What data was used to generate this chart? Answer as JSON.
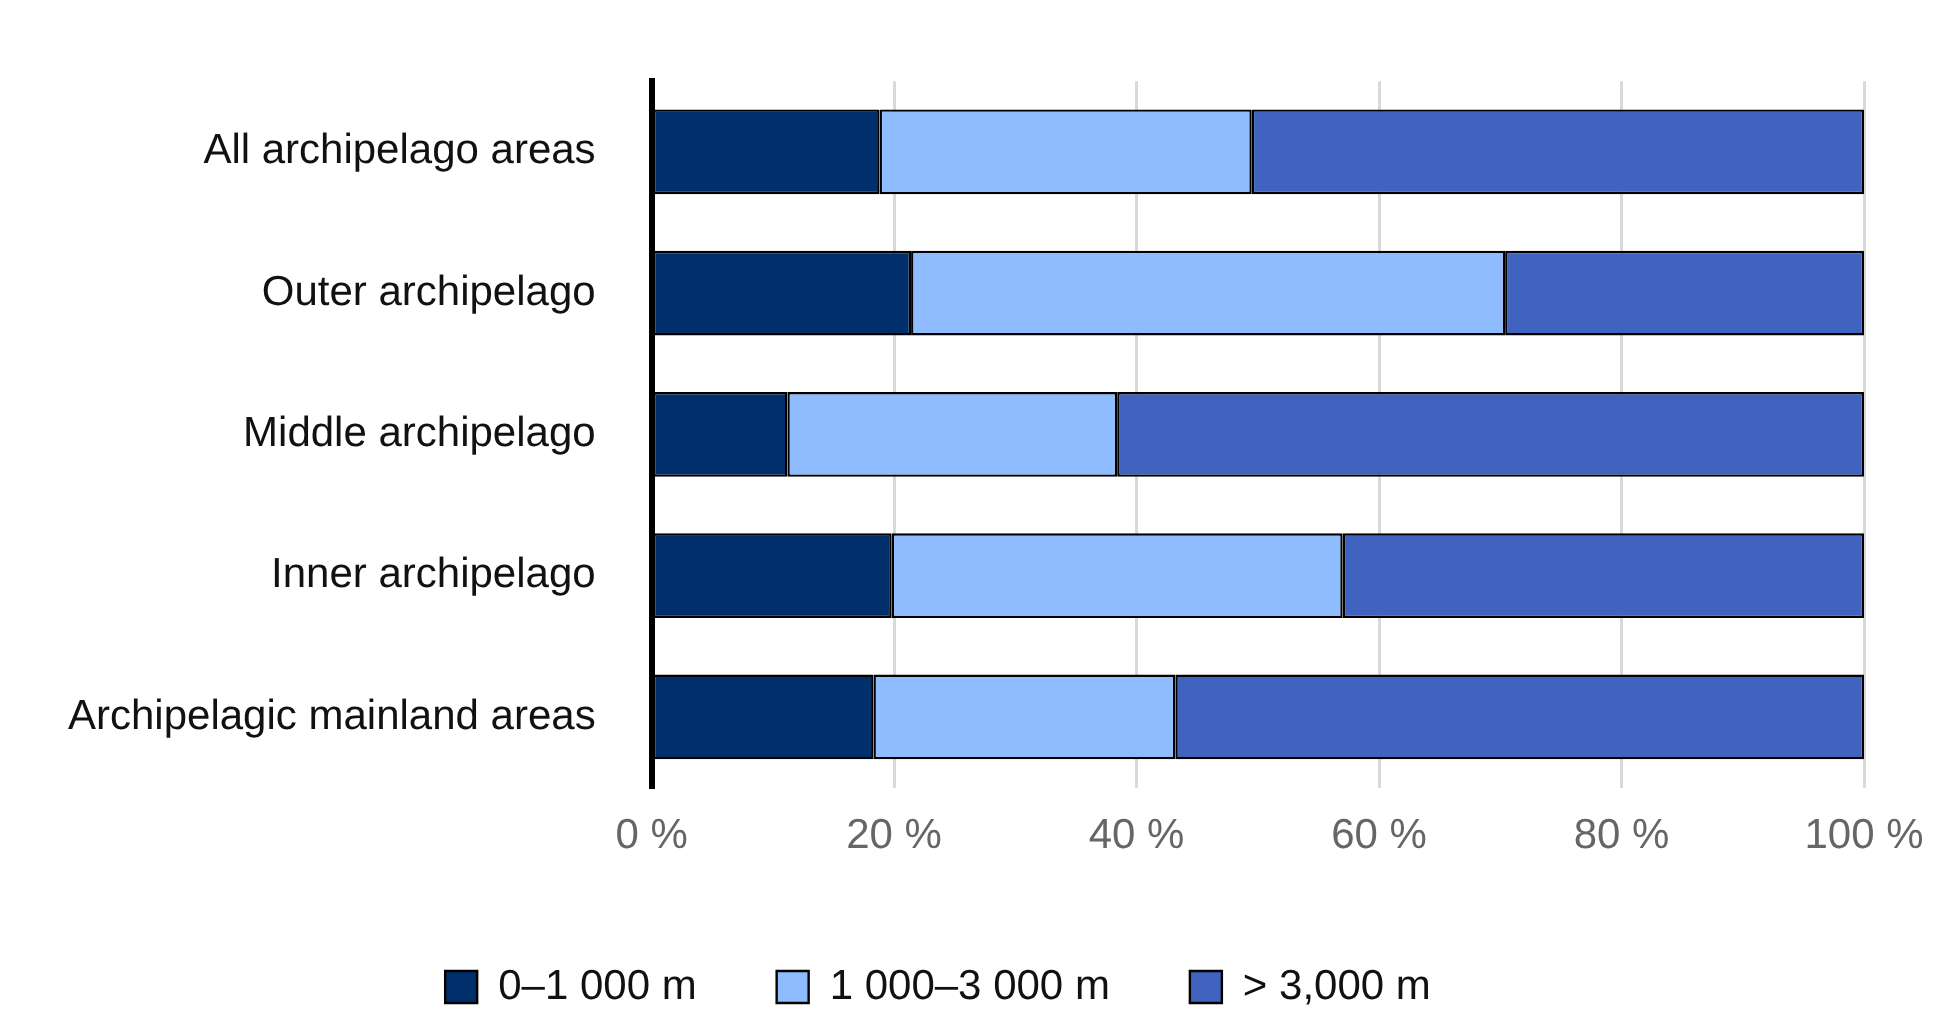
{
  "chart_data": {
    "type": "bar",
    "orientation": "horizontal",
    "stacked": true,
    "categories": [
      "All archipelago areas",
      "Outer archipelago",
      "Middle archipelago",
      "Inner archipelago",
      "Archipelagic mainland areas"
    ],
    "series": [
      {
        "name": "0–1 000 m",
        "color": "#002f6c",
        "values": [
          18.8,
          21.4,
          11.2,
          19.8,
          18.3
        ]
      },
      {
        "name": "1 000–3 000 m",
        "color": "#8fbcff",
        "values": [
          30.7,
          49.0,
          27.2,
          37.2,
          24.9
        ]
      },
      {
        "name": "> 3,000 m",
        "color": "#4063c0",
        "values": [
          50.5,
          29.6,
          61.6,
          43.0,
          56.8
        ]
      }
    ],
    "xlim": [
      0,
      100
    ],
    "xticks": [
      {
        "value": 0,
        "label": "0 %"
      },
      {
        "value": 20,
        "label": "20 %"
      },
      {
        "value": 40,
        "label": "40 %"
      },
      {
        "value": 60,
        "label": "60 %"
      },
      {
        "value": 80,
        "label": "80 %"
      },
      {
        "value": 100,
        "label": "100 %"
      }
    ],
    "grid": "x",
    "legend": "bottom"
  }
}
